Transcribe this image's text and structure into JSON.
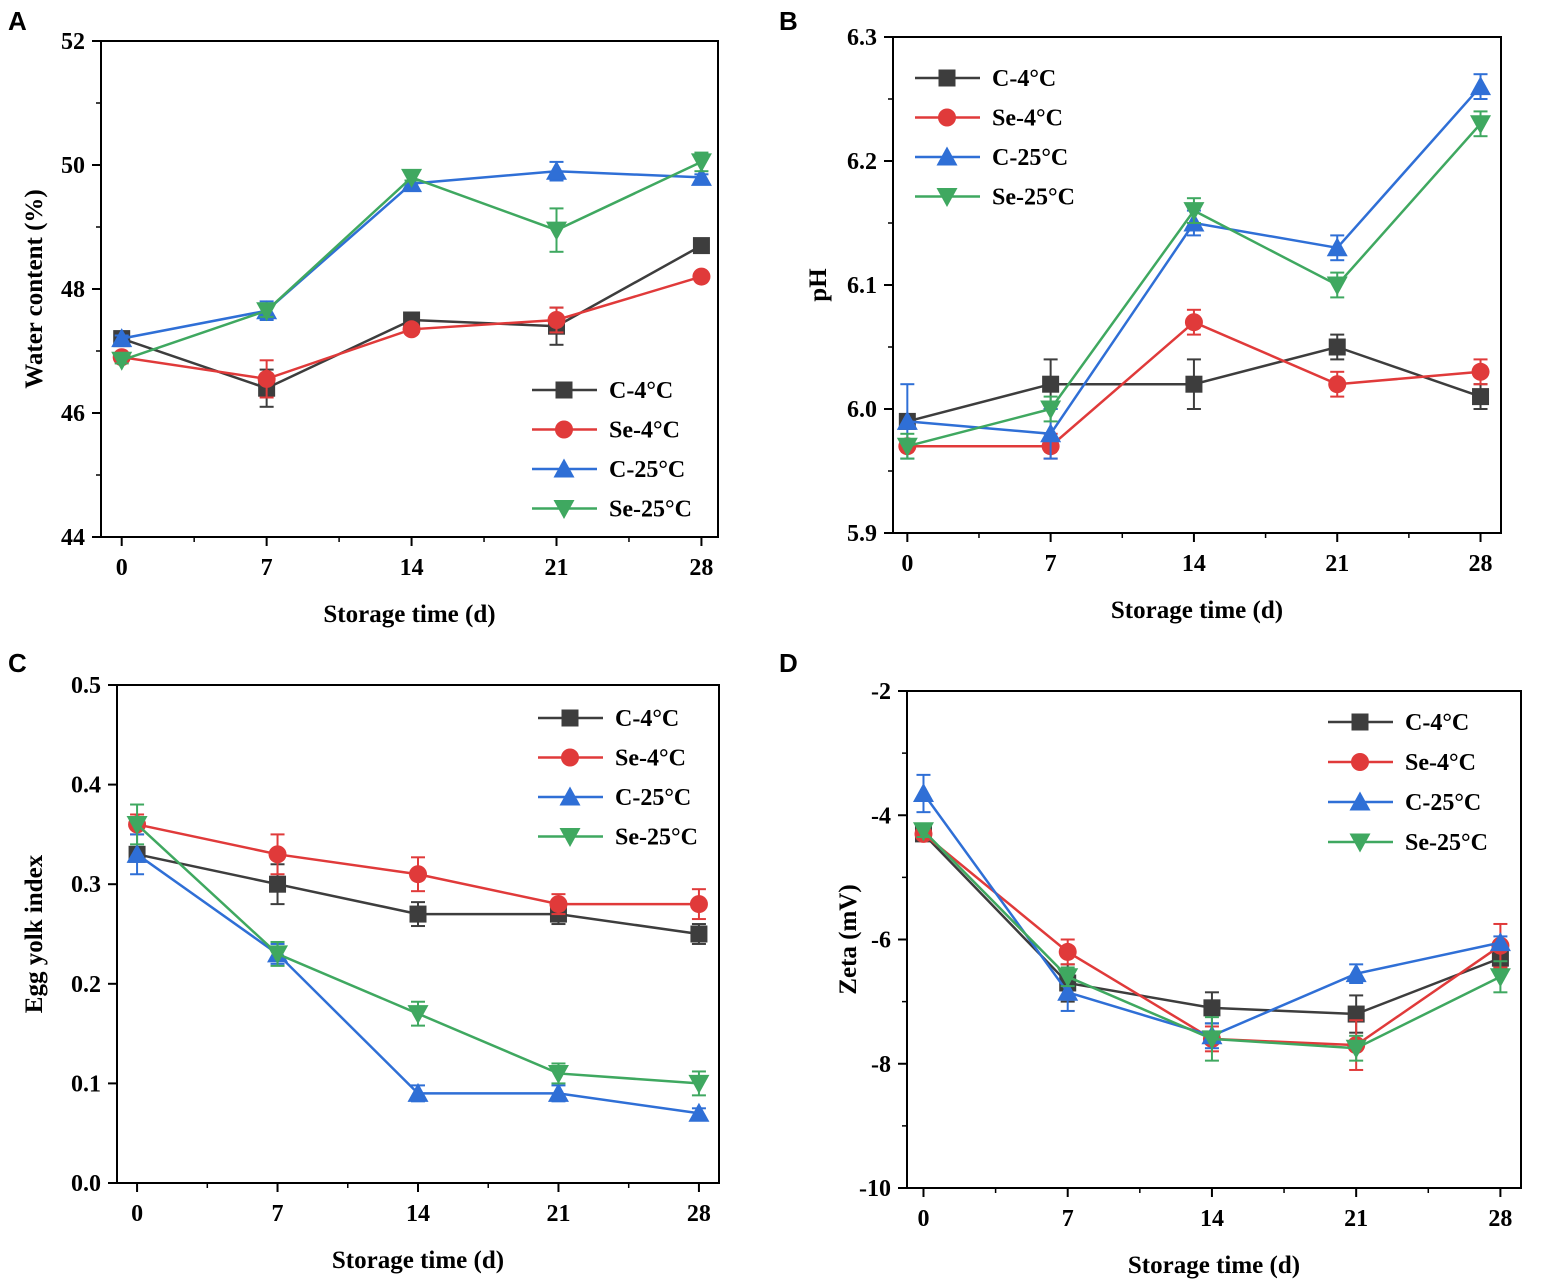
{
  "chart_data": [
    {
      "panel": "A",
      "type": "line",
      "xlabel": "Storage time (d)",
      "ylabel": "Water content (%)",
      "x": [
        0,
        7,
        14,
        21,
        28
      ],
      "xticks": [
        "0",
        "7",
        "14",
        "21",
        "28"
      ],
      "yticks": [
        "44",
        "46",
        "48",
        "50",
        "52"
      ],
      "xlim": [
        -1,
        28.8
      ],
      "ylim": [
        44,
        52
      ],
      "yminor": true,
      "legend_position": "bottom-right",
      "series": [
        {
          "name": "C-4°C",
          "marker": "square",
          "color": "#3d3d3d",
          "values": [
            47.2,
            46.4,
            47.5,
            47.4,
            48.7
          ],
          "errors": [
            0.05,
            0.3,
            0.08,
            0.3,
            0.05
          ]
        },
        {
          "name": "Se-4°C",
          "marker": "circle",
          "color": "#e03a3a",
          "values": [
            46.9,
            46.55,
            47.35,
            47.5,
            48.2
          ],
          "errors": [
            0.05,
            0.3,
            0.05,
            0.2,
            0.05
          ]
        },
        {
          "name": "C-25°C",
          "marker": "triangle-up",
          "color": "#2f6fd6",
          "values": [
            47.2,
            47.65,
            49.7,
            49.9,
            49.8
          ],
          "errors": [
            0.05,
            0.15,
            0.05,
            0.15,
            0.05
          ]
        },
        {
          "name": "Se-25°C",
          "marker": "triangle-down",
          "color": "#3fa860",
          "values": [
            46.85,
            47.65,
            49.8,
            48.95,
            50.05
          ],
          "errors": [
            0.05,
            0.1,
            0.05,
            0.35,
            0.15
          ]
        }
      ]
    },
    {
      "panel": "B",
      "type": "line",
      "xlabel": "Storage time (d)",
      "ylabel": "pH",
      "x": [
        0,
        7,
        14,
        21,
        28
      ],
      "xticks": [
        "0",
        "7",
        "14",
        "21",
        "28"
      ],
      "yticks": [
        "5.9",
        "6.0",
        "6.1",
        "6.2",
        "6.3"
      ],
      "xlim": [
        -0.7,
        29
      ],
      "ylim": [
        5.9,
        6.3
      ],
      "yminor": true,
      "legend_position": "top-left",
      "series": [
        {
          "name": "C-4°C",
          "marker": "square",
          "color": "#3d3d3d",
          "values": [
            5.99,
            6.02,
            6.02,
            6.05,
            6.01
          ],
          "errors": [
            0.003,
            0.02,
            0.02,
            0.01,
            0.01
          ]
        },
        {
          "name": "Se-4°C",
          "marker": "circle",
          "color": "#e03a3a",
          "values": [
            5.97,
            5.97,
            6.07,
            6.02,
            6.03
          ],
          "errors": [
            0.003,
            0.01,
            0.01,
            0.01,
            0.01
          ]
        },
        {
          "name": "C-25°C",
          "marker": "triangle-up",
          "color": "#2f6fd6",
          "values": [
            5.99,
            5.98,
            6.15,
            6.13,
            6.26
          ],
          "errors": [
            0.03,
            0.02,
            0.01,
            0.01,
            0.01
          ]
        },
        {
          "name": "Se-25°C",
          "marker": "triangle-down",
          "color": "#3fa860",
          "values": [
            5.97,
            6.0,
            6.16,
            6.1,
            6.23
          ],
          "errors": [
            0.01,
            0.01,
            0.01,
            0.01,
            0.01
          ]
        }
      ]
    },
    {
      "panel": "C",
      "type": "line",
      "xlabel": "Storage time (d)",
      "ylabel": "Egg yolk index",
      "x": [
        0,
        7,
        14,
        21,
        28
      ],
      "xticks": [
        "0",
        "7",
        "14",
        "21",
        "28"
      ],
      "yticks": [
        "0.0",
        "0.1",
        "0.2",
        "0.3",
        "0.4",
        "0.5"
      ],
      "xlim": [
        -1,
        29
      ],
      "ylim": [
        0,
        0.5
      ],
      "yminor": false,
      "legend_position": "top-right",
      "series": [
        {
          "name": "C-4°C",
          "marker": "square",
          "color": "#3d3d3d",
          "values": [
            0.33,
            0.3,
            0.27,
            0.27,
            0.25
          ],
          "errors": [
            0.003,
            0.02,
            0.012,
            0.01,
            0.01
          ]
        },
        {
          "name": "Se-4°C",
          "marker": "circle",
          "color": "#e03a3a",
          "values": [
            0.36,
            0.33,
            0.31,
            0.28,
            0.28
          ],
          "errors": [
            0.01,
            0.02,
            0.017,
            0.01,
            0.015
          ]
        },
        {
          "name": "C-25°C",
          "marker": "triangle-up",
          "color": "#2f6fd6",
          "values": [
            0.33,
            0.23,
            0.09,
            0.09,
            0.07
          ],
          "errors": [
            0.02,
            0.01,
            0.008,
            0.008,
            0.005
          ]
        },
        {
          "name": "Se-25°C",
          "marker": "triangle-down",
          "color": "#3fa860",
          "values": [
            0.36,
            0.23,
            0.17,
            0.11,
            0.1
          ],
          "errors": [
            0.02,
            0.012,
            0.012,
            0.01,
            0.012
          ]
        }
      ]
    },
    {
      "panel": "D",
      "type": "line",
      "xlabel": "Storage time (d)",
      "ylabel": "Zeta (mV)",
      "x": [
        0,
        7,
        14,
        21,
        28
      ],
      "xticks": [
        "0",
        "7",
        "14",
        "21",
        "28"
      ],
      "yticks": [
        "-10",
        "-8",
        "-6",
        "-4",
        "-2"
      ],
      "xlim": [
        -0.8,
        29
      ],
      "ylim": [
        -10,
        -2
      ],
      "yminor": true,
      "legend_position": "top-right",
      "series": [
        {
          "name": "C-4°C",
          "marker": "square",
          "color": "#3d3d3d",
          "values": [
            -4.3,
            -6.7,
            -7.1,
            -7.2,
            -6.3
          ],
          "errors": [
            0.05,
            0.3,
            0.25,
            0.3,
            0.15
          ]
        },
        {
          "name": "Se-4°C",
          "marker": "circle",
          "color": "#e03a3a",
          "values": [
            -4.3,
            -6.2,
            -7.6,
            -7.7,
            -6.1
          ],
          "errors": [
            0.05,
            0.2,
            0.2,
            0.4,
            0.35
          ]
        },
        {
          "name": "C-25°C",
          "marker": "triangle-up",
          "color": "#2f6fd6",
          "values": [
            -3.65,
            -6.85,
            -7.55,
            -6.55,
            -6.05
          ],
          "errors": [
            0.3,
            0.3,
            0.2,
            0.15,
            0.1
          ]
        },
        {
          "name": "Se-25°C",
          "marker": "triangle-down",
          "color": "#3fa860",
          "values": [
            -4.25,
            -6.6,
            -7.6,
            -7.75,
            -6.6
          ],
          "errors": [
            0.1,
            0.15,
            0.35,
            0.2,
            0.25
          ]
        }
      ]
    }
  ]
}
